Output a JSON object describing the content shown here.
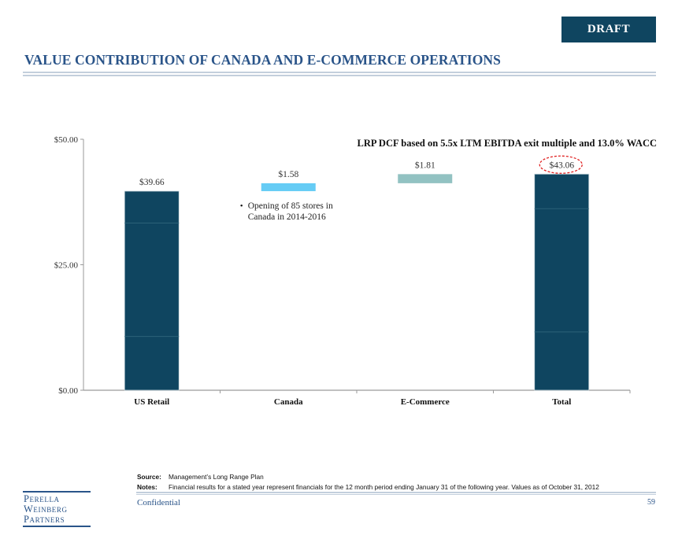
{
  "badge": {
    "label": "DRAFT"
  },
  "page": {
    "title": "VALUE CONTRIBUTION OF CANADA AND E-COMMERCE OPERATIONS",
    "confidential": "Confidential",
    "page_number": "59"
  },
  "footer": {
    "source_label": "Source:",
    "source_text": "Management’s Long Range Plan",
    "notes_label": "Notes:",
    "notes_text": "Financial results for a stated year represent financials for the 12 month period ending January 31 of the following year. Values as of October 31, 2012"
  },
  "logo": {
    "lines": [
      "Perella",
      "Weinberg",
      "Partners"
    ]
  },
  "colors": {
    "us_retail": "#0f4560",
    "canada": "#66ccf5",
    "ecommerce": "#92c2c2",
    "total": "#0f4560",
    "highlight_ellipse": "#e02020",
    "title": "#2a5489"
  },
  "chart_data": {
    "type": "bar",
    "subtype": "waterfall",
    "title": "LRP DCF based on 5.5x LTM EBITDA exit multiple and 13.0% WACC",
    "xlabel": "",
    "ylabel": "",
    "categories": [
      "US Retail",
      "Canada",
      "E-Commerce",
      "Total"
    ],
    "values": [
      39.66,
      1.58,
      1.81,
      43.06
    ],
    "bases": [
      0,
      39.66,
      41.24,
      0
    ],
    "data_labels": [
      "$39.66",
      "$1.58",
      "$1.81",
      "$43.06"
    ],
    "ylim": [
      0,
      50
    ],
    "yticks": [
      0,
      25,
      50
    ],
    "ytick_labels": [
      "$0.00",
      "$25.00",
      "$50.00"
    ],
    "grid": false,
    "legend": "none",
    "annotations": [
      {
        "category": "Canada",
        "text_lines": [
          "Opening of  85 stores in",
          "Canada in 2014-2016"
        ],
        "bullet": "•"
      },
      {
        "category": "Total",
        "type": "highlight-ellipse",
        "target": "$43.06"
      }
    ]
  }
}
